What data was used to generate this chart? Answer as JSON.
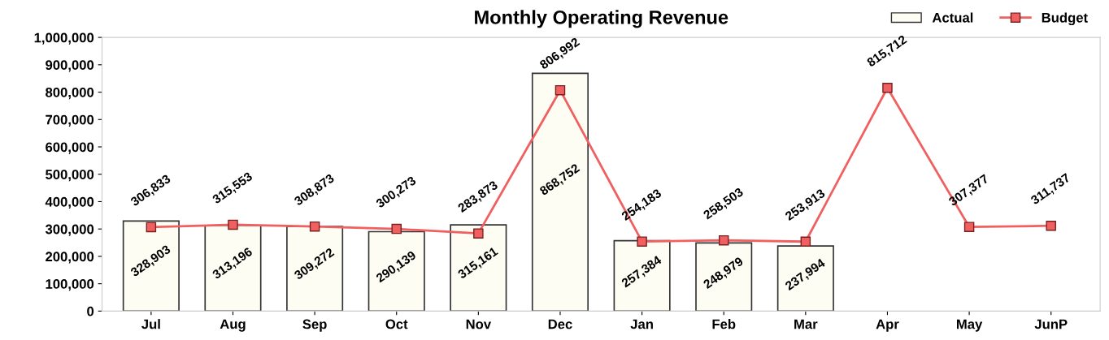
{
  "chart_data": {
    "type": "bar",
    "title": "Monthly Operating Revenue",
    "categories": [
      "Jul",
      "Aug",
      "Sep",
      "Oct",
      "Nov",
      "Dec",
      "Jan",
      "Feb",
      "Mar",
      "Apr",
      "May",
      "JunP"
    ],
    "series": [
      {
        "name": "Actual",
        "color": "#fdfdf3",
        "values": [
          328903,
          313196,
          309272,
          290139,
          315161,
          868752,
          257384,
          248979,
          237994,
          null,
          null,
          null
        ],
        "value_labels": [
          "328,903",
          "313,196",
          "309,272",
          "290,139",
          "315,161",
          "868,752",
          "257,384",
          "248,979",
          "237,994",
          null,
          null,
          null
        ]
      },
      {
        "name": "Budget",
        "type": "line",
        "color": "#f06060",
        "values": [
          306833,
          315553,
          308873,
          300273,
          283873,
          806992,
          254183,
          258503,
          253913,
          815712,
          307377,
          311737
        ],
        "value_labels": [
          "306,833",
          "315,553",
          "308,873",
          "300,273",
          "283,873",
          "806,992",
          "254,183",
          "258,503",
          "253,913",
          "815,712",
          "307,377",
          "311,737"
        ]
      }
    ],
    "ylim": [
      0,
      1000000
    ],
    "yticks": [
      0,
      {
        "value": 100000,
        "label": "100,000"
      },
      {
        "value": 200000,
        "label": "200,000"
      },
      {
        "value": 300000,
        "label": "300,000"
      },
      {
        "value": 400000,
        "label": "400,000"
      },
      {
        "value": 500000,
        "label": "500,000"
      },
      {
        "value": 600000,
        "label": "600,000"
      },
      {
        "value": 700000,
        "label": "700,000"
      },
      {
        "value": 800000,
        "label": "800,000"
      },
      {
        "value": 900000,
        "label": "900,000"
      },
      {
        "value": 1000000,
        "label": "1,000,000"
      }
    ],
    "marker": "square",
    "legend": "top right",
    "grid": false
  }
}
